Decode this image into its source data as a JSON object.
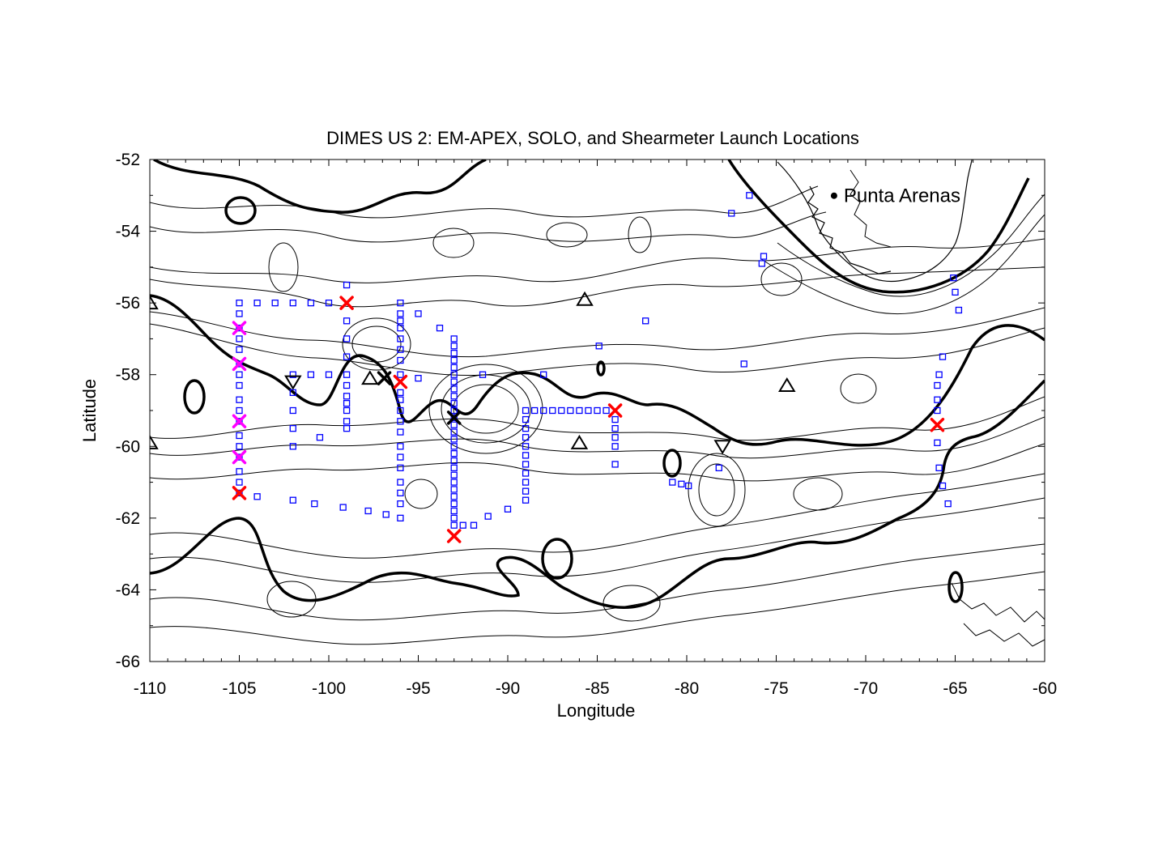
{
  "chart_data": {
    "type": "scatter",
    "title": "DIMES US 2: EM-APEX, SOLO, and Shearmeter Launch Locations",
    "xlabel": "Longitude",
    "ylabel": "Latitude",
    "xlim": [
      -110,
      -60
    ],
    "ylim": [
      -66,
      -52
    ],
    "xticks": [
      -110,
      -105,
      -100,
      -95,
      -90,
      -85,
      -80,
      -75,
      -70,
      -65,
      -60
    ],
    "yticks": [
      -66,
      -64,
      -62,
      -60,
      -58,
      -56,
      -54,
      -52
    ],
    "background": "contour map",
    "place_labels": [
      {
        "text": "Punta Arenas",
        "lon": -71,
        "lat": -53.1
      }
    ],
    "series": [
      {
        "marker": "square",
        "color": "#0000ff",
        "points": [
          [
            -105,
            -56
          ],
          [
            -105,
            -56.3
          ],
          [
            -105,
            -56.7
          ],
          [
            -105,
            -57
          ],
          [
            -105,
            -57.3
          ],
          [
            -105,
            -57.7
          ],
          [
            -105,
            -58
          ],
          [
            -105,
            -58.3
          ],
          [
            -105,
            -58.7
          ],
          [
            -105,
            -59
          ],
          [
            -105,
            -59.3
          ],
          [
            -105,
            -59.7
          ],
          [
            -105,
            -60
          ],
          [
            -105,
            -60.3
          ],
          [
            -105,
            -60.7
          ],
          [
            -105,
            -61
          ],
          [
            -105,
            -61.3
          ],
          [
            -104,
            -56
          ],
          [
            -103,
            -56
          ],
          [
            -102,
            -56
          ],
          [
            -101,
            -56
          ],
          [
            -100,
            -56
          ],
          [
            -99,
            -55.5
          ],
          [
            -102,
            -58
          ],
          [
            -102,
            -58.5
          ],
          [
            -102,
            -59
          ],
          [
            -102,
            -59.5
          ],
          [
            -102,
            -60
          ],
          [
            -101,
            -58
          ],
          [
            -100.5,
            -59.75
          ],
          [
            -100,
            -58
          ],
          [
            -99,
            -56.5
          ],
          [
            -99,
            -57
          ],
          [
            -99,
            -57.5
          ],
          [
            -99,
            -58
          ],
          [
            -99,
            -58.3
          ],
          [
            -99,
            -58.6
          ],
          [
            -99,
            -58.8
          ],
          [
            -99,
            -59
          ],
          [
            -99,
            -59.3
          ],
          [
            -99,
            -59.5
          ],
          [
            -96,
            -56
          ],
          [
            -96,
            -56.3
          ],
          [
            -96,
            -56.5
          ],
          [
            -96,
            -56.7
          ],
          [
            -96,
            -57
          ],
          [
            -96,
            -57.3
          ],
          [
            -96,
            -57.6
          ],
          [
            -96,
            -58
          ],
          [
            -96,
            -58.5
          ],
          [
            -96,
            -58.7
          ],
          [
            -96,
            -59
          ],
          [
            -96,
            -59.3
          ],
          [
            -96,
            -59.6
          ],
          [
            -96,
            -60
          ],
          [
            -96,
            -60.3
          ],
          [
            -96,
            -60.6
          ],
          [
            -96,
            -61
          ],
          [
            -96,
            -61.3
          ],
          [
            -96,
            -61.6
          ],
          [
            -96,
            -62
          ],
          [
            -95,
            -56.3
          ],
          [
            -95,
            -58.1
          ],
          [
            -93.8,
            -56.7
          ],
          [
            -93,
            -57
          ],
          [
            -93,
            -57.2
          ],
          [
            -93,
            -57.4
          ],
          [
            -93,
            -57.6
          ],
          [
            -93,
            -57.8
          ],
          [
            -93,
            -58
          ],
          [
            -93,
            -58.2
          ],
          [
            -93,
            -58.4
          ],
          [
            -93,
            -58.6
          ],
          [
            -93,
            -58.8
          ],
          [
            -93,
            -59
          ],
          [
            -93,
            -59.2
          ],
          [
            -93,
            -59.4
          ],
          [
            -93,
            -59.6
          ],
          [
            -93,
            -59.8
          ],
          [
            -93,
            -60
          ],
          [
            -93,
            -60.2
          ],
          [
            -93,
            -60.4
          ],
          [
            -93,
            -60.6
          ],
          [
            -93,
            -60.8
          ],
          [
            -93,
            -61
          ],
          [
            -93,
            -61.2
          ],
          [
            -93,
            -61.4
          ],
          [
            -93,
            -61.6
          ],
          [
            -93,
            -61.8
          ],
          [
            -93,
            -62
          ],
          [
            -93,
            -62.2
          ],
          [
            -92.5,
            -62.2
          ],
          [
            -91.9,
            -62.2
          ],
          [
            -91.1,
            -61.95
          ],
          [
            -90,
            -61.75
          ],
          [
            -91.4,
            -58
          ],
          [
            -88,
            -58
          ],
          [
            -89,
            -59
          ],
          [
            -89,
            -59.25
          ],
          [
            -89,
            -59.5
          ],
          [
            -89,
            -59.75
          ],
          [
            -89,
            -60
          ],
          [
            -89,
            -60.25
          ],
          [
            -89,
            -60.5
          ],
          [
            -89,
            -60.75
          ],
          [
            -89,
            -61
          ],
          [
            -89,
            -61.25
          ],
          [
            -89,
            -61.5
          ],
          [
            -88.5,
            -59
          ],
          [
            -88,
            -59
          ],
          [
            -87.5,
            -59
          ],
          [
            -87,
            -59
          ],
          [
            -86.5,
            -59
          ],
          [
            -86,
            -59
          ],
          [
            -85.5,
            -59
          ],
          [
            -85,
            -59
          ],
          [
            -84.5,
            -59
          ],
          [
            -84,
            -59.25
          ],
          [
            -84,
            -59.5
          ],
          [
            -84,
            -59.75
          ],
          [
            -84,
            -60
          ],
          [
            -84,
            -60.5
          ],
          [
            -84.9,
            -57.2
          ],
          [
            -82.3,
            -56.5
          ],
          [
            -77.5,
            -53.5
          ],
          [
            -76.5,
            -53
          ],
          [
            -75.7,
            -54.7
          ],
          [
            -75.8,
            -54.9
          ],
          [
            -76.8,
            -57.7
          ],
          [
            -80.8,
            -61
          ],
          [
            -80.3,
            -61.05
          ],
          [
            -79.9,
            -61.1
          ],
          [
            -78.2,
            -60.6
          ],
          [
            -65.7,
            -57.5
          ],
          [
            -65.9,
            -58
          ],
          [
            -66,
            -58.3
          ],
          [
            -66,
            -58.7
          ],
          [
            -66,
            -59
          ],
          [
            -66,
            -59.9
          ],
          [
            -65.9,
            -60.6
          ],
          [
            -65.7,
            -61.1
          ],
          [
            -65.4,
            -61.6
          ],
          [
            -65.1,
            -55.3
          ],
          [
            -65,
            -55.7
          ],
          [
            -64.8,
            -56.2
          ],
          [
            -104,
            -61.4
          ],
          [
            -102,
            -61.5
          ],
          [
            -100.8,
            -61.6
          ],
          [
            -99.2,
            -61.7
          ],
          [
            -97.8,
            -61.8
          ],
          [
            -96.8,
            -61.9
          ]
        ]
      },
      {
        "marker": "x",
        "color": "#ff0000",
        "points": [
          [
            -99,
            -56
          ],
          [
            -96,
            -58.2
          ],
          [
            -93,
            -62.5
          ],
          [
            -84,
            -59
          ],
          [
            -66,
            -59.4
          ],
          [
            -105,
            -61.3
          ]
        ]
      },
      {
        "marker": "x",
        "color": "#ff00ff",
        "points": [
          [
            -105,
            -56.7
          ],
          [
            -105,
            -57.7
          ],
          [
            -105,
            -59.3
          ],
          [
            -105,
            -60.3
          ]
        ]
      },
      {
        "marker": "x",
        "color": "#000000",
        "points": [
          [
            -96.9,
            -58.1
          ],
          [
            -93,
            -59.2
          ]
        ]
      },
      {
        "marker": "triangle-up",
        "color": "#000000",
        "points": [
          [
            -110,
            -56
          ],
          [
            -110,
            -59.9
          ],
          [
            -97.7,
            -58.1
          ],
          [
            -86,
            -59.9
          ],
          [
            -85.7,
            -55.9
          ],
          [
            -74.4,
            -58.3
          ]
        ]
      },
      {
        "marker": "triangle-down",
        "color": "#000000",
        "points": [
          [
            -102,
            -58.2
          ],
          [
            -78,
            -60
          ]
        ]
      }
    ]
  }
}
